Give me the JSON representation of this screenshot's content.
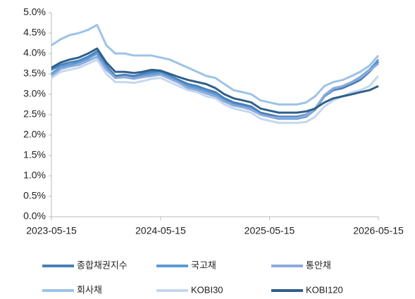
{
  "chart_data": {
    "type": "line",
    "x": [
      "2023-05-15",
      "2023-06-15",
      "2023-07-15",
      "2023-08-15",
      "2023-09-15",
      "2023-10-15",
      "2023-11-15",
      "2023-12-15",
      "2024-01-15",
      "2024-02-15",
      "2024-03-15",
      "2024-04-15",
      "2024-05-15",
      "2024-06-15",
      "2024-07-15",
      "2024-08-15",
      "2024-09-15",
      "2024-10-15",
      "2024-11-15",
      "2024-12-15",
      "2025-01-15",
      "2025-02-15",
      "2025-03-15",
      "2025-04-15",
      "2025-05-15",
      "2025-06-15",
      "2025-07-15",
      "2025-08-15",
      "2025-09-15",
      "2025-10-15",
      "2025-11-15",
      "2025-12-15",
      "2026-01-15",
      "2026-02-15",
      "2026-03-15",
      "2026-04-15",
      "2026-05-15"
    ],
    "series": [
      {
        "name": "종합채권지수",
        "color": "#4a7fb8",
        "values": [
          3.6,
          3.72,
          3.78,
          3.82,
          3.92,
          4.05,
          3.7,
          3.45,
          3.48,
          3.45,
          3.5,
          3.55,
          3.55,
          3.45,
          3.35,
          3.25,
          3.2,
          3.12,
          3.05,
          2.9,
          2.8,
          2.75,
          2.7,
          2.55,
          2.5,
          2.45,
          2.45,
          2.45,
          2.5,
          2.65,
          2.95,
          3.1,
          3.15,
          3.25,
          3.35,
          3.55,
          3.8
        ]
      },
      {
        "name": "국고채",
        "color": "#5b9bd5",
        "values": [
          3.5,
          3.68,
          3.72,
          3.78,
          3.88,
          4.0,
          3.65,
          3.4,
          3.42,
          3.4,
          3.45,
          3.5,
          3.52,
          3.42,
          3.3,
          3.2,
          3.15,
          3.08,
          3.0,
          2.85,
          2.75,
          2.7,
          2.65,
          2.5,
          2.45,
          2.4,
          2.4,
          2.4,
          2.45,
          2.62,
          2.95,
          3.12,
          3.2,
          3.3,
          3.42,
          3.6,
          3.85
        ]
      },
      {
        "name": "통안채",
        "color": "#8eaadb",
        "values": [
          3.45,
          3.62,
          3.68,
          3.72,
          3.82,
          3.92,
          3.6,
          3.4,
          3.42,
          3.38,
          3.42,
          3.45,
          3.48,
          3.38,
          3.28,
          3.15,
          3.1,
          3.02,
          2.95,
          2.82,
          2.72,
          2.68,
          2.62,
          2.5,
          2.45,
          2.42,
          2.42,
          2.42,
          2.48,
          2.65,
          2.98,
          3.15,
          3.2,
          3.3,
          3.4,
          3.58,
          3.75
        ]
      },
      {
        "name": "회사채",
        "color": "#9dc3e6",
        "values": [
          4.2,
          4.35,
          4.45,
          4.5,
          4.58,
          4.7,
          4.2,
          4.0,
          4.0,
          3.95,
          3.95,
          3.95,
          3.9,
          3.85,
          3.75,
          3.65,
          3.55,
          3.45,
          3.4,
          3.25,
          3.1,
          3.05,
          3.0,
          2.85,
          2.8,
          2.75,
          2.75,
          2.75,
          2.8,
          2.95,
          3.2,
          3.3,
          3.35,
          3.45,
          3.55,
          3.7,
          3.95
        ]
      },
      {
        "name": "KOBI30",
        "color": "#c5d7ee",
        "values": [
          3.4,
          3.55,
          3.6,
          3.65,
          3.75,
          3.85,
          3.5,
          3.3,
          3.3,
          3.28,
          3.32,
          3.38,
          3.4,
          3.3,
          3.2,
          3.1,
          3.05,
          2.95,
          2.9,
          2.75,
          2.65,
          2.6,
          2.55,
          2.4,
          2.35,
          2.3,
          2.3,
          2.3,
          2.32,
          2.45,
          2.7,
          2.85,
          2.95,
          3.05,
          3.1,
          3.2,
          3.45
        ]
      },
      {
        "name": "KOBI120",
        "color": "#2f5f8a",
        "values": [
          3.65,
          3.78,
          3.85,
          3.9,
          4.0,
          4.12,
          3.78,
          3.55,
          3.55,
          3.52,
          3.55,
          3.6,
          3.58,
          3.5,
          3.42,
          3.35,
          3.3,
          3.25,
          3.15,
          3.0,
          2.9,
          2.85,
          2.8,
          2.65,
          2.6,
          2.55,
          2.55,
          2.55,
          2.58,
          2.65,
          2.8,
          2.9,
          2.95,
          3.0,
          3.05,
          3.1,
          3.2
        ]
      }
    ],
    "xlim": [
      "2023-05-15",
      "2026-05-15"
    ],
    "xticks": [
      "2023-05-15",
      "2024-05-15",
      "2025-05-15",
      "2026-05-15"
    ],
    "ylim": [
      0,
      5
    ],
    "yticks": [
      {
        "value": 0,
        "label": "0.0%"
      },
      {
        "value": 0.5,
        "label": "0.5%"
      },
      {
        "value": 1,
        "label": "1.0%"
      },
      {
        "value": 1.5,
        "label": "1.5%"
      },
      {
        "value": 2,
        "label": "2.0%"
      },
      {
        "value": 2.5,
        "label": "2.5%"
      },
      {
        "value": 3,
        "label": "3.0%"
      },
      {
        "value": 3.5,
        "label": "3.5%"
      },
      {
        "value": 4,
        "label": "4.0%"
      },
      {
        "value": 4.5,
        "label": "4.5%"
      },
      {
        "value": 5,
        "label": "5.0%"
      }
    ],
    "legend": "bottom"
  }
}
